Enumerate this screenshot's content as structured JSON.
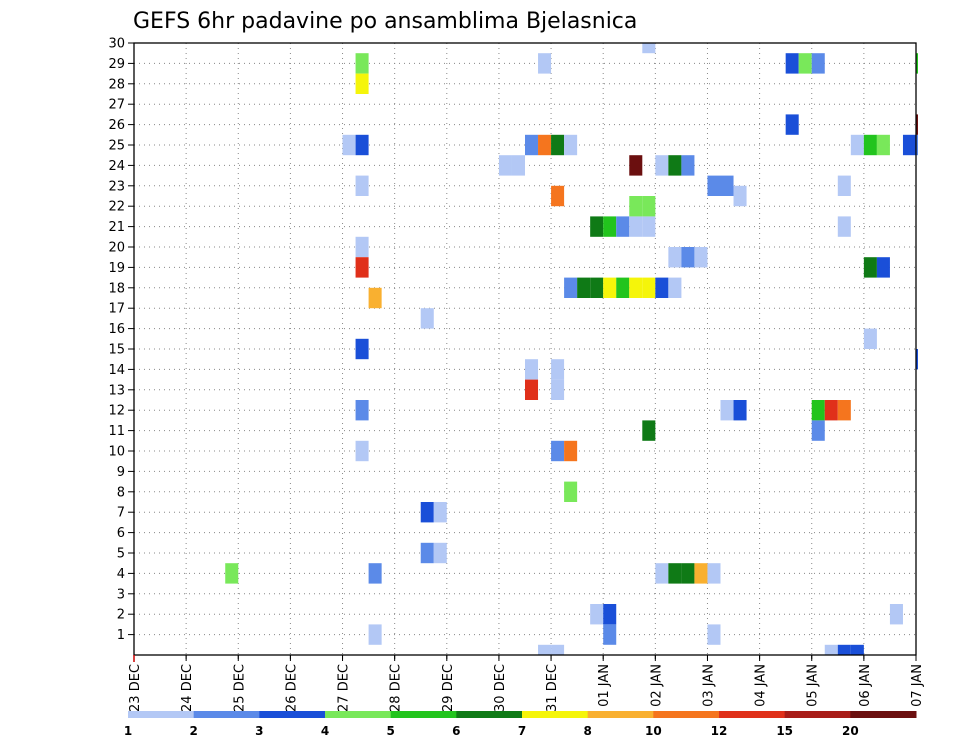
{
  "chart_data": {
    "type": "heatmap",
    "title": "GEFS 6hr padavine po ansamblima Bjelasnica",
    "xlabel": "",
    "ylabel": "",
    "x_tick_labels": [
      "23 DEC",
      "24 DEC",
      "25 DEC",
      "26 DEC",
      "27 DEC",
      "28 DEC",
      "29 DEC",
      "30 DEC",
      "31 DEC",
      "01 JAN",
      "02 JAN",
      "03 JAN",
      "04 JAN",
      "05 JAN",
      "06 JAN",
      "07 JAN"
    ],
    "y_tick_labels": [
      "1",
      "2",
      "3",
      "4",
      "5",
      "6",
      "7",
      "8",
      "9",
      "10",
      "11",
      "12",
      "13",
      "14",
      "15",
      "16",
      "17",
      "18",
      "19",
      "20",
      "21",
      "22",
      "23",
      "24",
      "25",
      "26",
      "27",
      "28",
      "29",
      "30"
    ],
    "xlim_days": [
      0,
      15
    ],
    "ylim": [
      0,
      30
    ],
    "cell_days": 0.25,
    "grid": true,
    "colorbar": {
      "tick_labels": [
        "1",
        "2",
        "3",
        "4",
        "5",
        "6",
        "7",
        "8",
        "10",
        "12",
        "15",
        "20"
      ],
      "colors": [
        "#b3c8f5",
        "#5b8ae8",
        "#1a4fd8",
        "#79e85a",
        "#22c41d",
        "#0f7a16",
        "#f5f50a",
        "#f9b030",
        "#f5751e",
        "#e0301a",
        "#a81c18",
        "#6b0f0f"
      ]
    },
    "points": [
      {
        "x": 1.75,
        "y": 4,
        "v": 4
      },
      {
        "x": 4.25,
        "y": 29,
        "v": 4
      },
      {
        "x": 4.25,
        "y": 28,
        "v": 7
      },
      {
        "x": 4.25,
        "y": 25,
        "v": 3
      },
      {
        "x": 4,
        "y": 25,
        "v": 1
      },
      {
        "x": 4.25,
        "y": 23,
        "v": 1
      },
      {
        "x": 4.25,
        "y": 20,
        "v": 1
      },
      {
        "x": 4.25,
        "y": 19,
        "v": 12
      },
      {
        "x": 4.5,
        "y": 17.5,
        "v": 8
      },
      {
        "x": 4.25,
        "y": 15,
        "v": 3
      },
      {
        "x": 4.25,
        "y": 12,
        "v": 2
      },
      {
        "x": 4.25,
        "y": 10,
        "v": 1
      },
      {
        "x": 4.5,
        "y": 4,
        "v": 2
      },
      {
        "x": 4.5,
        "y": 1,
        "v": 1
      },
      {
        "x": 5.5,
        "y": 16.5,
        "v": 1
      },
      {
        "x": 5.5,
        "y": 7,
        "v": 3
      },
      {
        "x": 5.75,
        "y": 7,
        "v": 1
      },
      {
        "x": 5.5,
        "y": 5,
        "v": 2
      },
      {
        "x": 5.75,
        "y": 5,
        "v": 1
      },
      {
        "x": 7,
        "y": 24,
        "v": 1
      },
      {
        "x": 7.25,
        "y": 24,
        "v": 1
      },
      {
        "x": 7.75,
        "y": 29,
        "v": 1
      },
      {
        "x": 7.5,
        "y": 25,
        "v": 2
      },
      {
        "x": 7.75,
        "y": 25,
        "v": 10
      },
      {
        "x": 8,
        "y": 25,
        "v": 6
      },
      {
        "x": 8.25,
        "y": 25,
        "v": 1
      },
      {
        "x": 8,
        "y": 22.5,
        "v": 10
      },
      {
        "x": 7.5,
        "y": 14,
        "v": 1
      },
      {
        "x": 7.5,
        "y": 13,
        "v": 12
      },
      {
        "x": 8,
        "y": 14,
        "v": 1
      },
      {
        "x": 8,
        "y": 13,
        "v": 1
      },
      {
        "x": 8,
        "y": 10,
        "v": 2
      },
      {
        "x": 8.25,
        "y": 10,
        "v": 10
      },
      {
        "x": 8.25,
        "y": 8,
        "v": 4
      },
      {
        "x": 7.75,
        "y": 0,
        "v": 1
      },
      {
        "x": 8,
        "y": 0,
        "v": 1
      },
      {
        "x": 8.75,
        "y": 21,
        "v": 6
      },
      {
        "x": 9,
        "y": 21,
        "v": 5
      },
      {
        "x": 9.25,
        "y": 21,
        "v": 2
      },
      {
        "x": 9.5,
        "y": 21,
        "v": 1
      },
      {
        "x": 9.75,
        "y": 21,
        "v": 1
      },
      {
        "x": 9.5,
        "y": 22,
        "v": 4
      },
      {
        "x": 9.75,
        "y": 22,
        "v": 4
      },
      {
        "x": 8.25,
        "y": 18,
        "v": 2
      },
      {
        "x": 8.5,
        "y": 18,
        "v": 6
      },
      {
        "x": 8.75,
        "y": 18,
        "v": 6
      },
      {
        "x": 9,
        "y": 18,
        "v": 7
      },
      {
        "x": 9.25,
        "y": 18,
        "v": 5
      },
      {
        "x": 9.5,
        "y": 18,
        "v": 7
      },
      {
        "x": 9.75,
        "y": 18,
        "v": 7
      },
      {
        "x": 10,
        "y": 18,
        "v": 3
      },
      {
        "x": 10.25,
        "y": 18,
        "v": 1
      },
      {
        "x": 8.75,
        "y": 2,
        "v": 1
      },
      {
        "x": 9,
        "y": 2,
        "v": 3
      },
      {
        "x": 9,
        "y": 1,
        "v": 2
      },
      {
        "x": 9.5,
        "y": 24,
        "v": 20
      },
      {
        "x": 9.75,
        "y": 30,
        "v": 1
      },
      {
        "x": 9.75,
        "y": 11,
        "v": 6
      },
      {
        "x": 10,
        "y": 24,
        "v": 1
      },
      {
        "x": 10.25,
        "y": 24,
        "v": 6
      },
      {
        "x": 10.5,
        "y": 24,
        "v": 2
      },
      {
        "x": 10.25,
        "y": 19.5,
        "v": 1
      },
      {
        "x": 10.5,
        "y": 19.5,
        "v": 2
      },
      {
        "x": 10.75,
        "y": 19.5,
        "v": 1
      },
      {
        "x": 10,
        "y": 4,
        "v": 1
      },
      {
        "x": 10.25,
        "y": 4,
        "v": 6
      },
      {
        "x": 10.5,
        "y": 4,
        "v": 6
      },
      {
        "x": 10.75,
        "y": 4,
        "v": 8
      },
      {
        "x": 11,
        "y": 4,
        "v": 1
      },
      {
        "x": 11,
        "y": 23,
        "v": 2
      },
      {
        "x": 11.25,
        "y": 23,
        "v": 2
      },
      {
        "x": 11.5,
        "y": 22.5,
        "v": 1
      },
      {
        "x": 11.25,
        "y": 12,
        "v": 1
      },
      {
        "x": 11.5,
        "y": 12,
        "v": 3
      },
      {
        "x": 11,
        "y": 1,
        "v": 1
      },
      {
        "x": 12.5,
        "y": 29,
        "v": 3
      },
      {
        "x": 12.75,
        "y": 29,
        "v": 4
      },
      {
        "x": 13,
        "y": 29,
        "v": 2
      },
      {
        "x": 12.5,
        "y": 26,
        "v": 3
      },
      {
        "x": 13.75,
        "y": 25,
        "v": 1
      },
      {
        "x": 14,
        "y": 25,
        "v": 5
      },
      {
        "x": 14.25,
        "y": 25,
        "v": 4
      },
      {
        "x": 14.75,
        "y": 25,
        "v": 3
      },
      {
        "x": 15,
        "y": 25,
        "v": 2
      },
      {
        "x": 15,
        "y": 29,
        "v": 5
      },
      {
        "x": 15,
        "y": 26,
        "v": 20
      },
      {
        "x": 15,
        "y": 14.5,
        "v": 3
      },
      {
        "x": 13.5,
        "y": 23,
        "v": 1
      },
      {
        "x": 13.5,
        "y": 21,
        "v": 1
      },
      {
        "x": 14,
        "y": 19,
        "v": 6
      },
      {
        "x": 14.25,
        "y": 19,
        "v": 3
      },
      {
        "x": 14,
        "y": 15.5,
        "v": 1
      },
      {
        "x": 13,
        "y": 12,
        "v": 5
      },
      {
        "x": 13.25,
        "y": 12,
        "v": 12
      },
      {
        "x": 13.5,
        "y": 12,
        "v": 10
      },
      {
        "x": 13,
        "y": 11,
        "v": 2
      },
      {
        "x": 14.5,
        "y": 2,
        "v": 1
      },
      {
        "x": 13.25,
        "y": 0,
        "v": 1
      },
      {
        "x": 13.5,
        "y": 0,
        "v": 3
      },
      {
        "x": 13.75,
        "y": 0,
        "v": 3
      }
    ]
  }
}
